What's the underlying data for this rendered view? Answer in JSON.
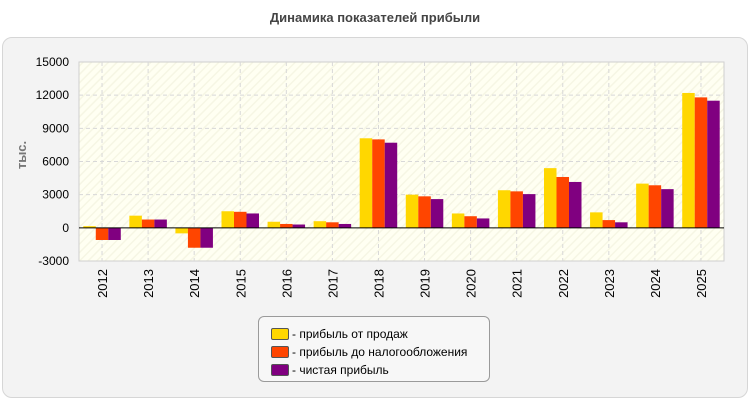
{
  "chart_data": {
    "type": "bar",
    "title": "Динамика показателей прибыли",
    "ylabel": "тыс.",
    "xlabel": "",
    "ylim": [
      -3000,
      15000
    ],
    "yticks": [
      15000,
      12000,
      9000,
      6000,
      3000,
      0,
      -3000
    ],
    "grid": true,
    "legend_position": "bottom-center",
    "categories": [
      "2012",
      "2013",
      "2014",
      "2015",
      "2016",
      "2017",
      "2018",
      "2019",
      "2020",
      "2021",
      "2022",
      "2023",
      "2024",
      "2025"
    ],
    "series": [
      {
        "name": "- прибыль от продаж",
        "color": "#ffd700",
        "values": [
          150,
          1100,
          -500,
          1500,
          550,
          600,
          8100,
          3000,
          1300,
          3400,
          5400,
          1400,
          4000,
          12200
        ]
      },
      {
        "name": "- прибыль до налогообложения",
        "color": "#ff4500",
        "values": [
          -1100,
          750,
          -1800,
          1450,
          350,
          500,
          8000,
          2850,
          1050,
          3300,
          4600,
          700,
          3850,
          11800
        ]
      },
      {
        "name": "- чистая прибыль",
        "color": "#800080",
        "values": [
          -1100,
          750,
          -1800,
          1300,
          300,
          350,
          7700,
          2600,
          850,
          3050,
          4150,
          500,
          3500,
          11500
        ]
      }
    ]
  }
}
